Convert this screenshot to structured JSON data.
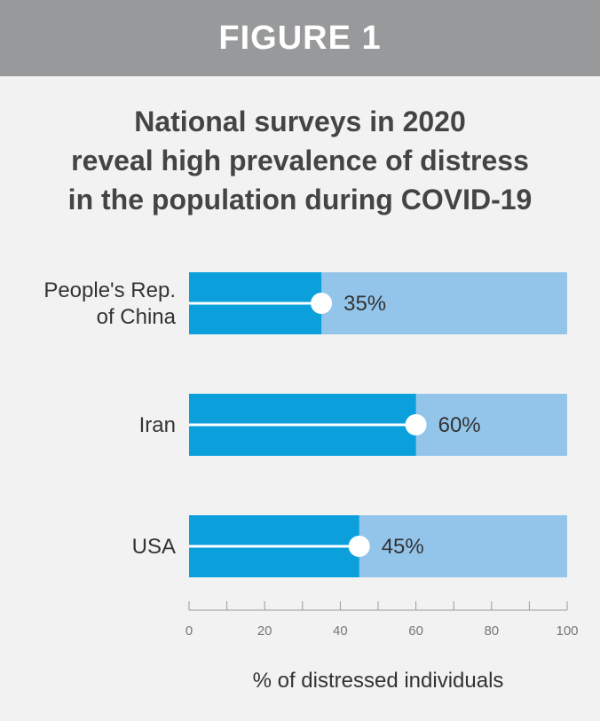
{
  "header": {
    "label": "FIGURE 1"
  },
  "colors": {
    "header_bg": "#98999b",
    "bar_fill": "#0ba0dc",
    "bar_track": "#93c5ea",
    "marker": "#ffffff",
    "text": "#333333"
  },
  "chart_data": {
    "type": "bar",
    "orientation": "horizontal",
    "title": [
      "National surveys in 2020",
      "reveal high prevalence of distress",
      "in the population during COVID-19"
    ],
    "categories": [
      {
        "lines": [
          "People's Rep.",
          "of China"
        ],
        "value": 35,
        "label": "35%"
      },
      {
        "lines": [
          "Iran"
        ],
        "value": 60,
        "label": "60%"
      },
      {
        "lines": [
          "USA"
        ],
        "value": 45,
        "label": "45%"
      }
    ],
    "xlim": [
      0,
      100
    ],
    "xticks": [
      0,
      20,
      40,
      60,
      80,
      100
    ],
    "xlabel": "% of distressed individuals"
  }
}
